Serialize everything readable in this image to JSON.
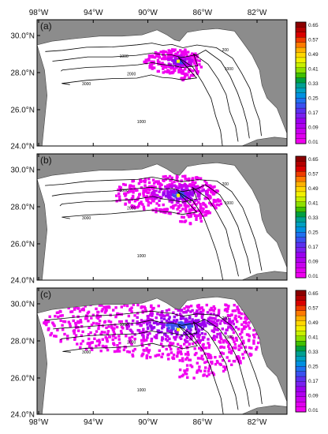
{
  "figure": {
    "lon_ticks": [
      "98°W",
      "94°W",
      "90°W",
      "86°W",
      "82°W"
    ],
    "lat_ticks": [
      "30.0°N",
      "28.0°N",
      "26.0°N",
      "24.0°N"
    ],
    "panels": [
      {
        "label": "(a)",
        "spread": 0.18
      },
      {
        "label": "(b)",
        "spread": 0.45
      },
      {
        "label": "(c)",
        "spread": 1.0
      }
    ],
    "contour_labels": [
      "1000",
      "2000",
      "3000",
      "200",
      "1000",
      "1000"
    ],
    "colorbar": {
      "labels": [
        "0.65",
        "0.57",
        "0.49",
        "0.41",
        "0.33",
        "0.25",
        "0.17",
        "0.09",
        "0.01"
      ],
      "colors": [
        "#8b0000",
        "#b30000",
        "#d90000",
        "#f03c00",
        "#ff7a00",
        "#ffb000",
        "#ffd700",
        "#f2f000",
        "#c8f000",
        "#8ee000",
        "#40c000",
        "#00a040",
        "#00a090",
        "#00a0c0",
        "#0090e0",
        "#1f70f0",
        "#3a50f0",
        "#5a30f0",
        "#7a20f0",
        "#9a00f0",
        "#b000f0",
        "#c800f0",
        "#e000f0",
        "#f000f0"
      ]
    },
    "colors": {
      "land": "#8c8c8c",
      "ocean": "#ffffff",
      "contour": "#000000",
      "source_marker": "#ffff00"
    },
    "source_location": {
      "lon": -88.4,
      "lat": 28.7
    }
  }
}
